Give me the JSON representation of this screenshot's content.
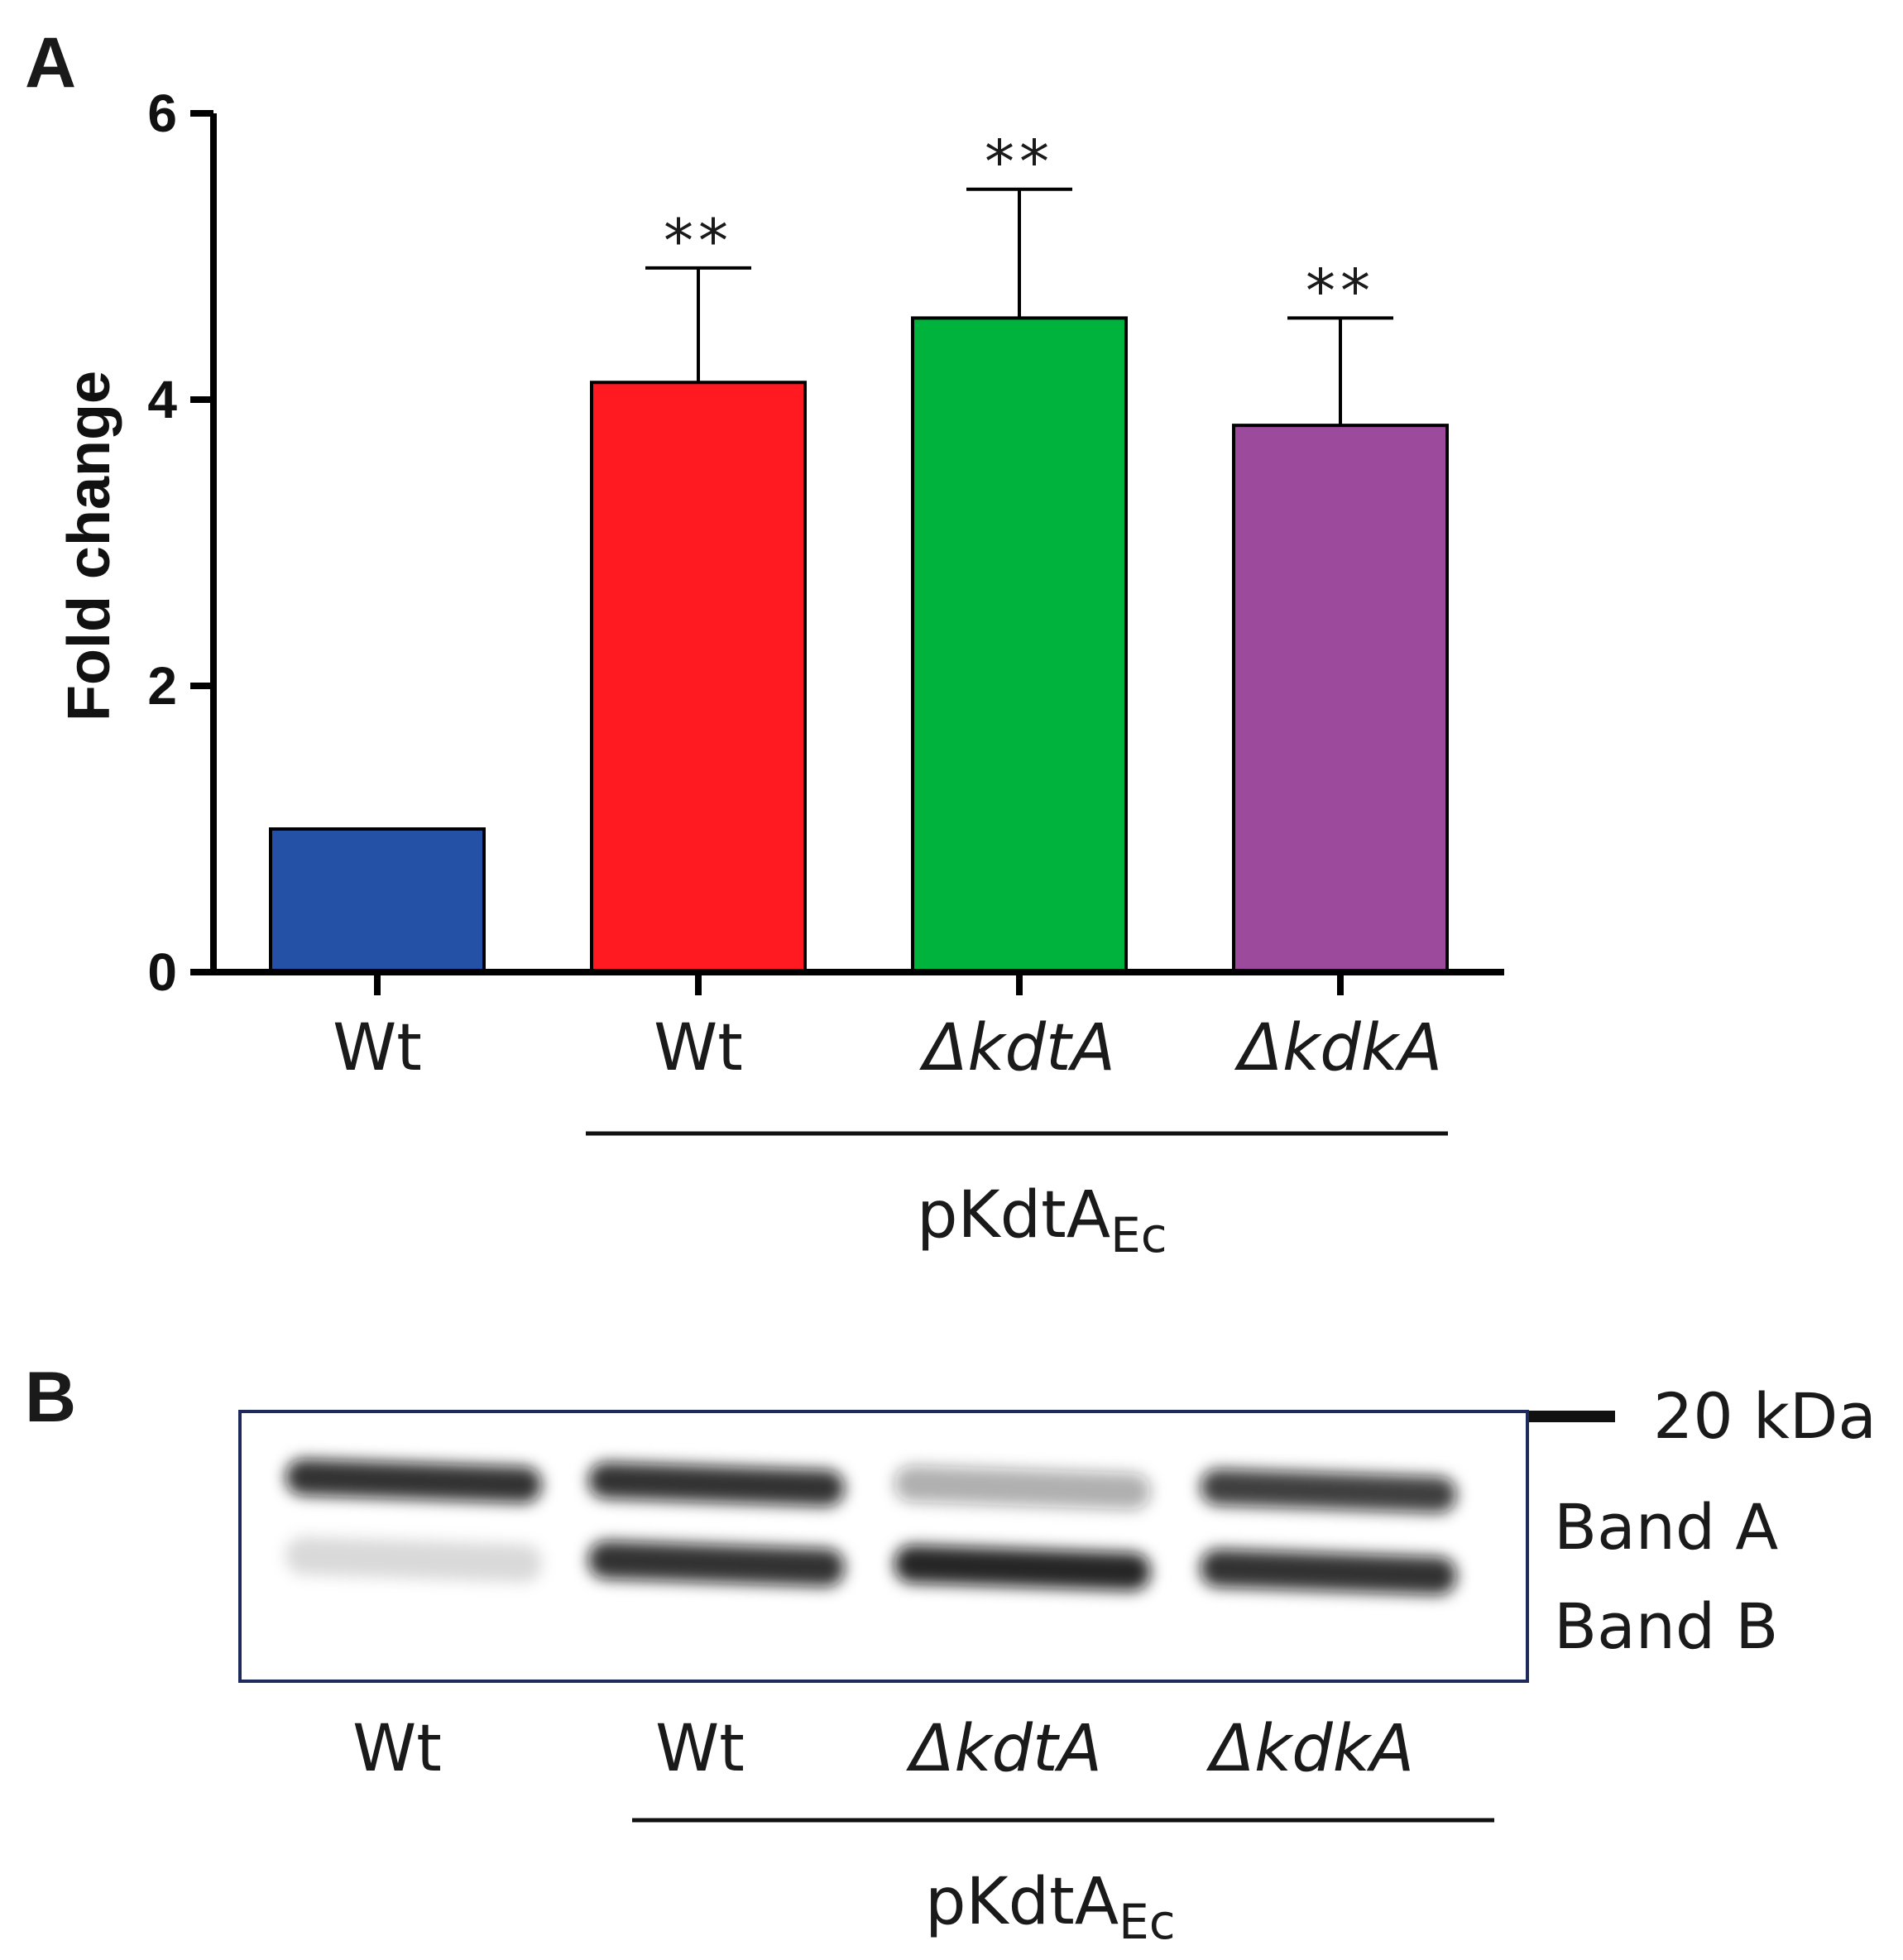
{
  "panel_a_label": "A",
  "panel_b_label": "B",
  "chart_data": {
    "type": "bar",
    "ylabel": "Fold change",
    "xlabel": "",
    "ylim": [
      0,
      6
    ],
    "yticks": [
      "0",
      "2",
      "4",
      "6"
    ],
    "categories": [
      "Wt",
      "Wt",
      "ΔkdtA",
      "ΔkdkA"
    ],
    "category_italic": [
      false,
      false,
      true,
      true
    ],
    "values": [
      1.0,
      4.12,
      4.57,
      3.82
    ],
    "errors": [
      0,
      0.8,
      0.9,
      0.75
    ],
    "significance": [
      "",
      "**",
      "**",
      "**"
    ],
    "colors": [
      "#2451a6",
      "#ff1a22",
      "#00b33c",
      "#9c4a9c"
    ],
    "group_label": "pKdtA",
    "group_label_sub": "Ec",
    "grid": false
  },
  "blot": {
    "marker_label": "20 kDa",
    "band_labels": [
      "Band A",
      "Band B"
    ],
    "lanes": [
      "Wt",
      "Wt",
      "ΔkdtA",
      "ΔkdkA"
    ],
    "lane_italic": [
      false,
      false,
      true,
      true
    ],
    "band_a_intensity": [
      0.85,
      0.85,
      0.35,
      0.8
    ],
    "band_b_intensity": [
      0.15,
      0.85,
      0.9,
      0.85
    ],
    "group_label": "pKdtA",
    "group_label_sub": "Ec"
  }
}
